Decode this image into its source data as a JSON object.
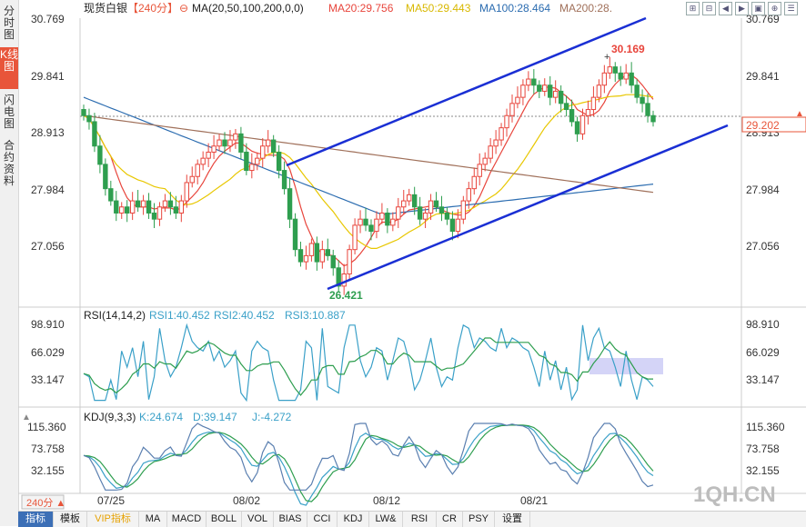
{
  "sidebar": {
    "tabs": [
      {
        "label": "分时图",
        "active": false
      },
      {
        "label": "K线图",
        "active": true
      },
      {
        "label": "闪电图",
        "active": false
      },
      {
        "label": "合约资料",
        "active": false
      }
    ]
  },
  "header": {
    "symbol": "现货白银",
    "period": "【240分】",
    "ma_label": "MA(20,50,100,200,0,0)",
    "ma20": "MA20:29.756",
    "ma50": "MA50:29.443",
    "ma100": "MA100:28.464",
    "ma200": "MA200:28."
  },
  "price_panel": {
    "y_ticks": [
      "30.769",
      "29.841",
      "28.913",
      "27.984",
      "27.056"
    ],
    "current_price": "29.202",
    "high_label": "30.169",
    "low_label": "26.421"
  },
  "rsi_panel": {
    "title": "RSI(14,14,2)",
    "rsi1": "RSI1:40.452",
    "rsi2": "RSI2:40.452",
    "rsi3": "RSI3:10.887",
    "y_ticks": [
      "98.910",
      "66.029",
      "33.147"
    ]
  },
  "kdj_panel": {
    "title": "KDJ(9,3,3)",
    "k": "K:24.674",
    "d": "D:39.147",
    "j": "J:-4.272",
    "y_ticks": [
      "115.360",
      "73.758",
      "32.155"
    ]
  },
  "x_axis": {
    "period_button": "240分 ▲",
    "dates": [
      "07/25",
      "08/02",
      "08/12",
      "08/21"
    ]
  },
  "watermark": "1QH.CN",
  "bottom_tabs": [
    {
      "label": "指标",
      "active": true
    },
    {
      "label": "模板"
    },
    {
      "label": "VIP指标",
      "vip": true
    },
    {
      "label": "MA"
    },
    {
      "label": "MACD"
    },
    {
      "label": "BOLL"
    },
    {
      "label": "VOL"
    },
    {
      "label": "BIAS"
    },
    {
      "label": "CCI"
    },
    {
      "label": "KDJ"
    },
    {
      "label": "LW&"
    },
    {
      "label": "RSI"
    },
    {
      "label": "CR"
    },
    {
      "label": "PSY"
    },
    {
      "label": "设置"
    }
  ],
  "colors": {
    "up": "#e8453c",
    "down": "#2e9e4f",
    "ma20": "#e8453c",
    "ma50": "#e8c700",
    "ma100": "#2b6cb0",
    "ma200": "#a0705a",
    "trend": "#1a2fd4"
  },
  "chart_data": {
    "type": "candlestick",
    "symbol": "现货白银",
    "period": "240分",
    "y_range": [
      26.2,
      30.9
    ],
    "x_dates": [
      "07/25",
      "08/02",
      "08/12",
      "08/21"
    ],
    "annotations": {
      "high": 30.169,
      "low": 26.421,
      "last": 29.202
    },
    "close_series": [
      29.3,
      29.2,
      28.8,
      28.5,
      28.1,
      27.9,
      27.7,
      27.8,
      27.7,
      27.9,
      27.8,
      27.9,
      27.7,
      27.6,
      27.8,
      27.9,
      27.8,
      27.7,
      27.9,
      28.2,
      28.3,
      28.5,
      28.6,
      28.7,
      28.8,
      28.9,
      28.8,
      28.9,
      29.0,
      28.7,
      28.4,
      28.5,
      28.6,
      28.8,
      28.9,
      28.7,
      28.4,
      28.1,
      27.6,
      27.1,
      26.9,
      27.0,
      27.2,
      26.9,
      27.1,
      27.0,
      26.8,
      26.5,
      26.7,
      27.1,
      27.5,
      27.6,
      27.5,
      27.4,
      27.6,
      27.7,
      27.5,
      27.6,
      27.8,
      27.9,
      28.0,
      27.8,
      27.6,
      27.7,
      27.9,
      27.8,
      27.7,
      27.6,
      27.4,
      27.6,
      27.9,
      28.1,
      28.3,
      28.5,
      28.6,
      28.8,
      28.9,
      29.1,
      29.3,
      29.5,
      29.6,
      29.8,
      29.9,
      29.8,
      29.7,
      29.8,
      29.6,
      29.7,
      29.5,
      29.4,
      29.2,
      29.0,
      29.3,
      29.4,
      29.6,
      29.8,
      30.0,
      30.1,
      30.0,
      29.9,
      30.0,
      29.8,
      29.6,
      29.5,
      29.3,
      29.2
    ],
    "moving_averages": {
      "MA20": 29.756,
      "MA50": 29.443,
      "MA100": 28.464
    },
    "rsi": {
      "RSI1": 40.452,
      "RSI2": 40.452,
      "RSI3": 10.887,
      "ylim": [
        0,
        100
      ]
    },
    "kdj": {
      "K": 24.674,
      "D": 39.147,
      "J": -4.272
    }
  }
}
